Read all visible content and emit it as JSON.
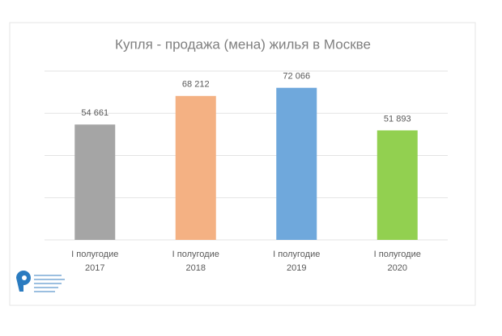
{
  "chart_data": {
    "type": "bar",
    "title": "Купля - продажа (мена) жилья в Москве",
    "categories": [
      [
        "I полугодие",
        "2017"
      ],
      [
        "I полугодие",
        "2018"
      ],
      [
        "I полугодие",
        "2019"
      ],
      [
        "I полугодие",
        "2020"
      ]
    ],
    "values": [
      54661,
      68212,
      72066,
      51893
    ],
    "value_labels": [
      "54 661",
      "68 212",
      "72 066",
      "51 893"
    ],
    "colors": [
      "#a5a5a5",
      "#f4b183",
      "#6fa8dc",
      "#92d050"
    ],
    "ylim": [
      0,
      80000
    ],
    "yticks": [
      0,
      20000,
      40000,
      60000,
      80000
    ],
    "grid": true
  }
}
